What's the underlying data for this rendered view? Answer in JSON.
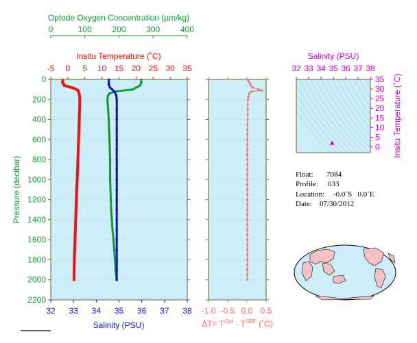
{
  "colors": {
    "temperature": "#ee1111",
    "salinity": "#1111cc",
    "oxygen": "#119933",
    "delta_t": "#f07070",
    "salinity_axis": "#cc00cc",
    "panel_fill": "#cdeef8",
    "frame": "#556b2f",
    "land": "#f4c2c2"
  },
  "chart_data": [
    {
      "type": "line",
      "name": "profile-panel",
      "ylabel": "Pressure (decibar)",
      "ylim": [
        2200,
        0
      ],
      "yticks": [
        0,
        200,
        400,
        600,
        800,
        1000,
        1200,
        1400,
        1600,
        1800,
        2000,
        2200
      ],
      "axes": {
        "oxygen": {
          "label": "Optode Oxygen Concentration (µm/kg)",
          "range": [
            0,
            400
          ],
          "ticks": [
            0,
            100,
            200,
            300,
            400
          ]
        },
        "temperature": {
          "label": "Insitu Temperature (˚C)",
          "range": [
            -5,
            35
          ],
          "ticks": [
            -5,
            0,
            5,
            10,
            15,
            20,
            25,
            30,
            35
          ]
        },
        "salinity": {
          "label": "Salinity (PSU)",
          "range": [
            32,
            38
          ],
          "ticks": [
            32,
            33,
            34,
            35,
            36,
            37,
            38
          ]
        }
      },
      "series": [
        {
          "key": "oxygen",
          "pressure": [
            4,
            30,
            60,
            100,
            120,
            140,
            160,
            200,
            300,
            400,
            500,
            600,
            700,
            800,
            900,
            1000,
            1100,
            1200,
            1300,
            1400,
            1500,
            1600,
            1700,
            1800,
            1900,
            2000
          ],
          "values": [
            265,
            265,
            262,
            240,
            190,
            172,
            168,
            166,
            168,
            170,
            171,
            172,
            173,
            174,
            174,
            174,
            175,
            176,
            177,
            179,
            181,
            184,
            186,
            188,
            190,
            193
          ]
        },
        {
          "key": "temperature",
          "pressure": [
            4,
            30,
            60,
            90,
            110,
            140,
            180,
            250,
            350,
            450,
            550,
            650,
            750,
            850,
            950,
            1000,
            1100,
            1200,
            1300,
            1400,
            1500,
            1600,
            1700,
            1800,
            1900,
            2000
          ],
          "values": [
            -1.5,
            -1.5,
            -1.0,
            2.0,
            3.0,
            3.3,
            3.5,
            3.5,
            3.4,
            3.3,
            3.2,
            3.1,
            3.0,
            2.9,
            2.8,
            2.75,
            2.6,
            2.5,
            2.4,
            2.3,
            2.2,
            2.1,
            2.0,
            1.9,
            1.85,
            1.8
          ]
        },
        {
          "key": "salinity",
          "pressure": [
            4,
            50,
            80,
            100,
            130,
            160,
            200,
            300,
            400,
            500,
            600,
            700,
            800,
            900,
            1000,
            1100,
            1200,
            1300,
            1400,
            1500,
            1600,
            1700,
            1800,
            1900,
            2000
          ],
          "values": [
            34.55,
            34.55,
            34.6,
            34.7,
            34.82,
            34.88,
            34.9,
            34.9,
            34.9,
            34.9,
            34.9,
            34.9,
            34.9,
            34.9,
            34.9,
            34.9,
            34.9,
            34.9,
            34.9,
            34.9,
            34.9,
            34.9,
            34.9,
            34.9,
            34.9
          ]
        }
      ]
    },
    {
      "type": "line",
      "name": "delta-t-panel",
      "xlabel": "ΔT= T",
      "xlabel_sup1": "Opt",
      "xlabel_mid": " - T",
      "xlabel_sup2": "SBE",
      "xlabel_unit": " (˚C)",
      "xlim": [
        -1.0,
        0.5
      ],
      "xticks": [
        "-1.0",
        "-0.5",
        "0.0",
        "0.5"
      ],
      "ylim": [
        2200,
        0
      ],
      "pressure": [
        4,
        20,
        40,
        60,
        80,
        100,
        110,
        120,
        140,
        170,
        200,
        250,
        300,
        350,
        400,
        450,
        500,
        550,
        600,
        650,
        700,
        750,
        800,
        850,
        900,
        950,
        1000,
        1050,
        1100,
        1150,
        1200,
        1250,
        1300,
        1350,
        1400,
        1450,
        1500,
        1550,
        1600,
        1650,
        1700,
        1750,
        1800,
        1850,
        1900,
        1950,
        2000
      ],
      "values": [
        0.02,
        0.05,
        0.08,
        0.1,
        0.15,
        0.3,
        0.4,
        0.12,
        0.06,
        0.04,
        0.03,
        0.02,
        0.02,
        0.02,
        0.02,
        0.01,
        0.01,
        0.01,
        0.01,
        0.01,
        0.01,
        0.01,
        0.01,
        0.01,
        0.01,
        0.01,
        0.01,
        0.01,
        0.01,
        0.01,
        0.01,
        0.01,
        0.01,
        0.01,
        0.01,
        0.01,
        0.01,
        0.01,
        0.01,
        0.01,
        0.01,
        0.01,
        0.01,
        0.01,
        0.01,
        0.01,
        0.01
      ]
    },
    {
      "type": "scatter",
      "name": "ts-diagram",
      "xlabel": "Salinity (PSU)",
      "ylabel": "Insitu Temperature (˚C)",
      "xlim": [
        32,
        38
      ],
      "ylim": [
        -3,
        35
      ],
      "xticks": [
        32,
        33,
        34,
        35,
        36,
        37,
        38
      ],
      "yticks": [
        0,
        5,
        10,
        15,
        20,
        25,
        30,
        35
      ],
      "marker": {
        "salinity": 34.9,
        "temperature": 1.8
      }
    }
  ],
  "float_info": {
    "float_label": "Float:",
    "float_value": "7084",
    "profile_label": "Profile:",
    "profile_value": "033",
    "location_label": "Location:",
    "location_value": "-0.0˚S   0.0˚E",
    "date_label": "Date:",
    "date_value": "07/30/2012"
  }
}
